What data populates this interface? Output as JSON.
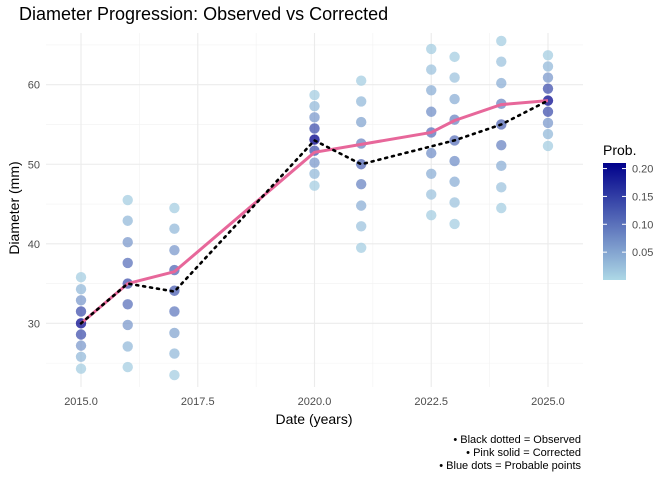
{
  "chart_data": {
    "type": "scatter",
    "title": "Diameter Progression: Observed vs Corrected",
    "xlabel": "Date (years)",
    "ylabel": "Diameter (mm)",
    "xlim": [
      2014.25,
      2025.75
    ],
    "ylim": [
      22,
      66.5
    ],
    "x_ticks": [
      2015,
      2017.5,
      2020,
      2022.5,
      2025
    ],
    "x_tick_labels": [
      "2015.0",
      "2017.5",
      "2020.0",
      "2022.5",
      "2025.0"
    ],
    "y_ticks": [
      30,
      40,
      50,
      60
    ],
    "y_tick_labels": [
      "30",
      "40",
      "50",
      "60"
    ],
    "grid": true,
    "observed": {
      "style": "black dotted",
      "color": "#000000",
      "x": [
        2015,
        2016,
        2017,
        2020,
        2021,
        2023,
        2024,
        2025
      ],
      "y": [
        30,
        35,
        34,
        53,
        50,
        53,
        55,
        58
      ]
    },
    "corrected": {
      "style": "pink solid",
      "color": "#E7679A",
      "x": [
        2015,
        2016,
        2017,
        2020,
        2021,
        2022.5,
        2023,
        2024,
        2025
      ],
      "y": [
        30,
        35,
        36.5,
        51.5,
        52.5,
        54,
        55.5,
        57.5,
        58
      ]
    },
    "probable_points": [
      {
        "x": 2015,
        "y": [
          24.3,
          25.8,
          27.2,
          28.6,
          30.0,
          31.5,
          32.9,
          34.3,
          35.8
        ],
        "p": [
          0.01,
          0.03,
          0.06,
          0.13,
          0.2,
          0.13,
          0.06,
          0.03,
          0.01
        ]
      },
      {
        "x": 2016,
        "y": [
          24.5,
          27.1,
          29.8,
          32.4,
          35.0,
          37.6,
          40.2,
          42.9,
          45.5
        ],
        "p": [
          0.01,
          0.03,
          0.06,
          0.1,
          0.13,
          0.1,
          0.06,
          0.03,
          0.01
        ]
      },
      {
        "x": 2017,
        "y": [
          23.5,
          26.2,
          28.8,
          31.5,
          34.1,
          36.7,
          39.2,
          41.9,
          44.5
        ],
        "p": [
          0.01,
          0.03,
          0.05,
          0.09,
          0.12,
          0.11,
          0.06,
          0.03,
          0.01
        ]
      },
      {
        "x": 2020,
        "y": [
          47.3,
          48.8,
          50.2,
          51.7,
          53.1,
          54.5,
          55.9,
          57.3,
          58.7
        ],
        "p": [
          0.01,
          0.03,
          0.06,
          0.13,
          0.21,
          0.13,
          0.06,
          0.03,
          0.01
        ]
      },
      {
        "x": 2021,
        "y": [
          39.5,
          42.2,
          44.8,
          47.5,
          50.0,
          52.6,
          55.3,
          57.9,
          60.5
        ],
        "p": [
          0.01,
          0.02,
          0.04,
          0.08,
          0.11,
          0.08,
          0.05,
          0.03,
          0.01
        ]
      },
      {
        "x": 2022.5,
        "y": [
          43.6,
          46.2,
          48.8,
          51.4,
          54.0,
          56.6,
          59.3,
          61.9,
          64.5
        ],
        "p": [
          0.01,
          0.02,
          0.04,
          0.07,
          0.1,
          0.07,
          0.04,
          0.02,
          0.01
        ]
      },
      {
        "x": 2023,
        "y": [
          42.5,
          45.2,
          47.8,
          50.4,
          53.0,
          55.6,
          58.2,
          60.9,
          63.5
        ],
        "p": [
          0.01,
          0.02,
          0.04,
          0.07,
          0.1,
          0.08,
          0.04,
          0.02,
          0.01
        ]
      },
      {
        "x": 2024,
        "y": [
          44.5,
          47.1,
          49.8,
          52.4,
          55.0,
          57.6,
          60.2,
          62.9,
          65.5
        ],
        "p": [
          0.01,
          0.02,
          0.04,
          0.08,
          0.11,
          0.08,
          0.04,
          0.02,
          0.01
        ]
      },
      {
        "x": 2025,
        "y": [
          52.3,
          53.8,
          55.2,
          56.6,
          58.0,
          59.5,
          60.9,
          62.3,
          63.7
        ],
        "p": [
          0.01,
          0.03,
          0.06,
          0.13,
          0.2,
          0.13,
          0.06,
          0.03,
          0.01
        ]
      }
    ],
    "legend": {
      "title": "Prob.",
      "placement": "right",
      "range": [
        0,
        0.21
      ],
      "ticks": [
        0.05,
        0.1,
        0.15,
        0.2
      ],
      "tick_labels": [
        "0.05",
        "0.10",
        "0.15",
        "0.20"
      ],
      "color_low": "#ADD8E6",
      "color_high": "#00008B"
    },
    "annotations": [
      "• Black dotted = Observed",
      "• Pink solid = Corrected",
      "• Blue dots = Probable points"
    ]
  }
}
